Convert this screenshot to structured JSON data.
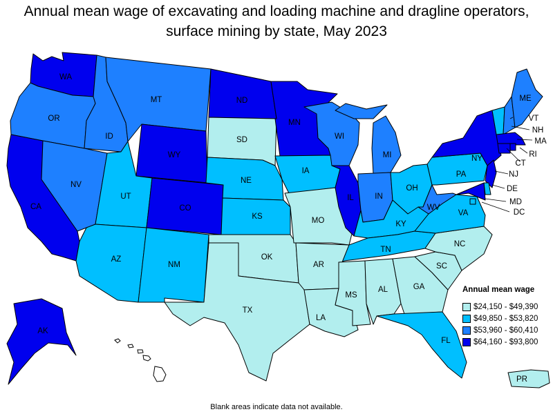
{
  "title": "Annual mean wage of excavating and loading machine and dragline operators, surface mining by state, May 2023",
  "legend": {
    "title": "Annual mean wage",
    "ranges": [
      {
        "label": "$24,150 - $49,390",
        "color": "#b2eeee"
      },
      {
        "label": "$49,850 - $53,820",
        "color": "#00bfff"
      },
      {
        "label": "$53,960 - $60,410",
        "color": "#1e80ff"
      },
      {
        "label": "$64,160 - $93,800",
        "color": "#0000ee"
      }
    ]
  },
  "footnote": "Blank areas indicate data not available.",
  "states": [
    {
      "abbr": "WA",
      "tier": 3
    },
    {
      "abbr": "OR",
      "tier": 2
    },
    {
      "abbr": "CA",
      "tier": 3
    },
    {
      "abbr": "ID",
      "tier": 2
    },
    {
      "abbr": "NV",
      "tier": 2
    },
    {
      "abbr": "MT",
      "tier": 2
    },
    {
      "abbr": "WY",
      "tier": 3
    },
    {
      "abbr": "UT",
      "tier": 1
    },
    {
      "abbr": "AZ",
      "tier": 1
    },
    {
      "abbr": "CO",
      "tier": 3
    },
    {
      "abbr": "NM",
      "tier": 1
    },
    {
      "abbr": "ND",
      "tier": 3
    },
    {
      "abbr": "SD",
      "tier": 0
    },
    {
      "abbr": "NE",
      "tier": 1
    },
    {
      "abbr": "KS",
      "tier": 1
    },
    {
      "abbr": "OK",
      "tier": 0
    },
    {
      "abbr": "TX",
      "tier": 0
    },
    {
      "abbr": "MN",
      "tier": 3
    },
    {
      "abbr": "IA",
      "tier": 1
    },
    {
      "abbr": "MO",
      "tier": 0
    },
    {
      "abbr": "AR",
      "tier": 0
    },
    {
      "abbr": "LA",
      "tier": 0
    },
    {
      "abbr": "WI",
      "tier": 2
    },
    {
      "abbr": "IL",
      "tier": 3
    },
    {
      "abbr": "MI",
      "tier": 2
    },
    {
      "abbr": "IN",
      "tier": 2
    },
    {
      "abbr": "OH",
      "tier": 1
    },
    {
      "abbr": "KY",
      "tier": 1
    },
    {
      "abbr": "TN",
      "tier": 1
    },
    {
      "abbr": "MS",
      "tier": 0
    },
    {
      "abbr": "AL",
      "tier": 0
    },
    {
      "abbr": "GA",
      "tier": 0
    },
    {
      "abbr": "FL",
      "tier": 1
    },
    {
      "abbr": "SC",
      "tier": 0
    },
    {
      "abbr": "NC",
      "tier": 0
    },
    {
      "abbr": "VA",
      "tier": 1
    },
    {
      "abbr": "WV",
      "tier": 2
    },
    {
      "abbr": "PA",
      "tier": 1
    },
    {
      "abbr": "NY",
      "tier": 3
    },
    {
      "abbr": "VT",
      "tier": 1
    },
    {
      "abbr": "NH",
      "tier": 2
    },
    {
      "abbr": "ME",
      "tier": 2
    },
    {
      "abbr": "MA",
      "tier": 3
    },
    {
      "abbr": "CT",
      "tier": 3
    },
    {
      "abbr": "RI",
      "tier": 3
    },
    {
      "abbr": "NJ",
      "tier": 3
    },
    {
      "abbr": "DE",
      "tier": 1
    },
    {
      "abbr": "MD",
      "tier": 3
    },
    {
      "abbr": "DC",
      "tier": 1
    },
    {
      "abbr": "AK",
      "tier": 3
    },
    {
      "abbr": "PR",
      "tier": 0
    }
  ]
}
